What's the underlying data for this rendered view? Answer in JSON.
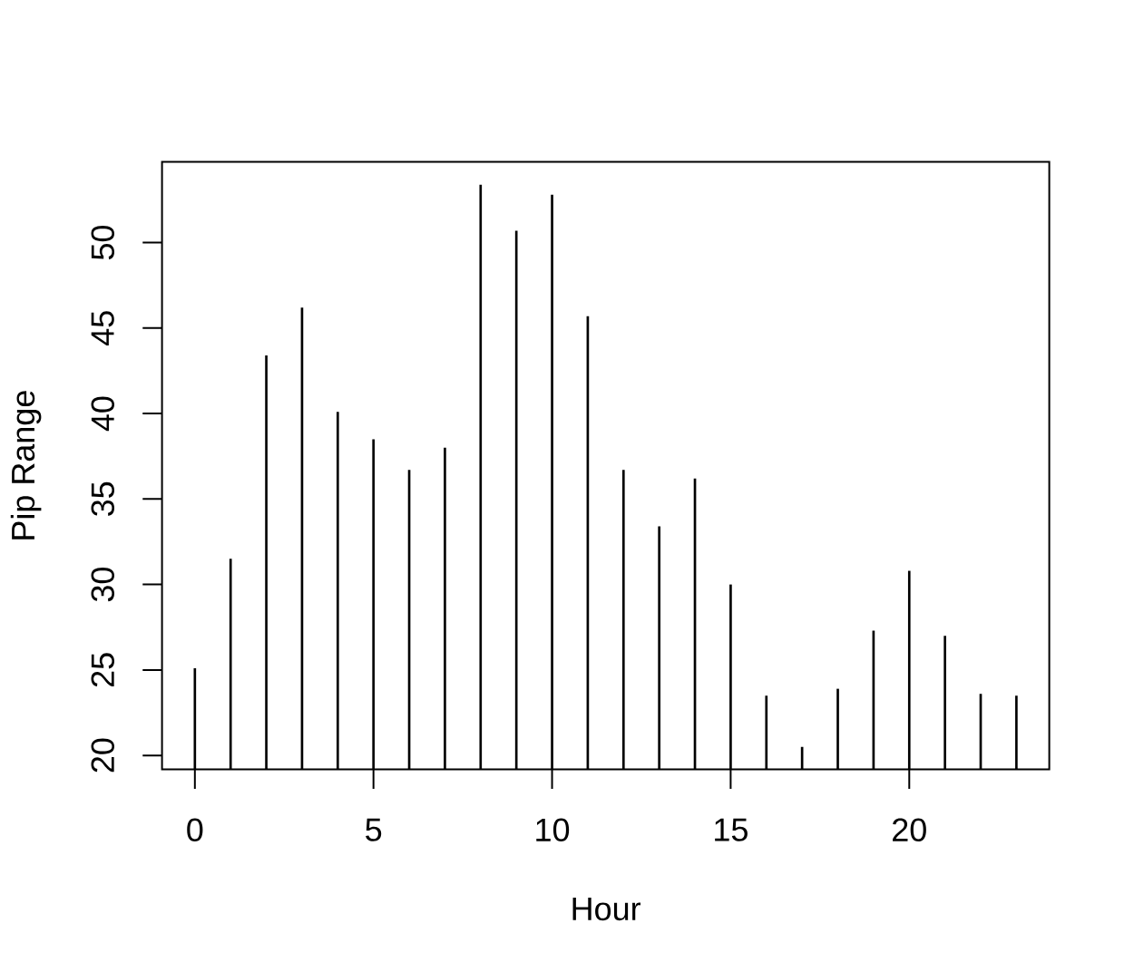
{
  "chart_data": {
    "type": "bar",
    "xlabel": "Hour",
    "ylabel": "Pip Range",
    "x": [
      0,
      1,
      2,
      3,
      4,
      5,
      6,
      7,
      8,
      9,
      10,
      11,
      12,
      13,
      14,
      15,
      16,
      17,
      18,
      19,
      20,
      21,
      22,
      23
    ],
    "values": [
      25.1,
      31.5,
      43.4,
      46.2,
      40.1,
      38.5,
      36.7,
      38.0,
      53.4,
      50.7,
      52.8,
      45.7,
      36.7,
      33.4,
      36.2,
      30.0,
      23.5,
      20.5,
      23.9,
      27.3,
      30.8,
      27.0,
      23.6,
      23.5
    ],
    "color": "#000000",
    "xlim": [
      -0.92,
      23.92
    ],
    "ylim": [
      19.18,
      54.72
    ],
    "xticks": [
      0,
      5,
      10,
      15,
      20
    ],
    "yticks": [
      20,
      25,
      30,
      35,
      40,
      45,
      50
    ]
  }
}
